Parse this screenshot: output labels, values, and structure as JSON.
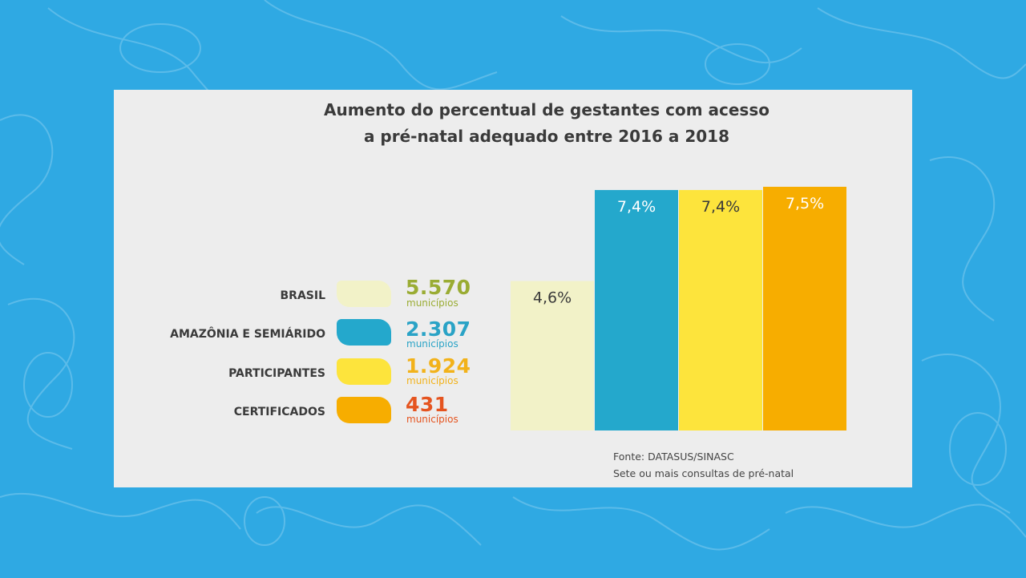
{
  "colors": {
    "background": "#2fa9e3",
    "panel": "#ededed",
    "brasil": "#f2f2c8",
    "amazonia": "#24a8cc",
    "participantes": "#fde43c",
    "certificados": "#f7ad00",
    "num_brasil": "#9aac33",
    "num_amazonia": "#2aa3c6",
    "num_participantes": "#f2b21a",
    "num_certificados": "#e5541f"
  },
  "legend": [
    {
      "label": "BRASIL",
      "count": "5.570",
      "unit": "municípios"
    },
    {
      "label": "AMAZÔNIA E SEMIÁRIDO",
      "count": "2.307",
      "unit": "municípios"
    },
    {
      "label": "PARTICIPANTES",
      "count": "1.924",
      "unit": "municípios"
    },
    {
      "label": "CERTIFICADOS",
      "count": "431",
      "unit": "municípios"
    }
  ],
  "source": {
    "line1": "Fonte: DATASUS/SINASC",
    "line2": "Sete ou mais consultas de pré-natal"
  },
  "chart_data": {
    "type": "bar",
    "title_line1": "Aumento do percentual de gestantes com acesso",
    "title_line2": "a pré-natal adequado entre 2016 a 2018",
    "categories": [
      "BRASIL",
      "AMAZÔNIA E SEMIÁRIDO",
      "PARTICIPANTES",
      "CERTIFICADOS"
    ],
    "values": [
      4.6,
      7.4,
      7.4,
      7.5
    ],
    "value_labels": [
      "4,6%",
      "7,4%",
      "7,4%",
      "7,5%"
    ],
    "bar_colors": [
      "#f2f2c8",
      "#24a8cc",
      "#fde43c",
      "#f7ad00"
    ],
    "label_colors": [
      "#3a3a3a",
      "#ffffff",
      "#3a3a3a",
      "#ffffff"
    ],
    "ylim": [
      0,
      7.5
    ],
    "grid": false,
    "legend_position": "left"
  }
}
